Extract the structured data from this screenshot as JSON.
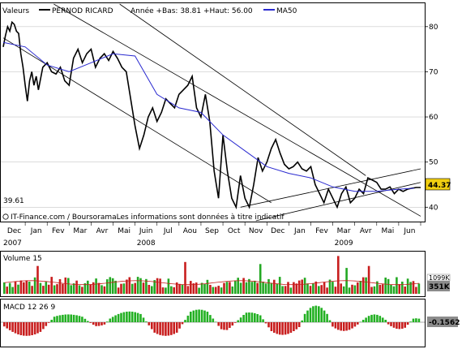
{
  "colors": {
    "price": "#000000",
    "ma50": "#2a2ad0",
    "channel": "#000000",
    "grid": "#c8c8c8",
    "volume_up": "#23a823",
    "volume_down": "#c81e1e",
    "volume_ma": "#c81e1e",
    "macd_up": "#22b022",
    "macd_down": "#c81e1e",
    "price_box": "#f2cf10",
    "box_grey": "#8c8c8c"
  },
  "chart_data": [
    {
      "type": "line",
      "legend": {
        "valeurs": "Valeurs",
        "name": "PERNOD RICARD",
        "stats": "Année +Bas: 38.81 +Haut: 56.00",
        "ma_label": "MA50"
      },
      "watermark": "IT-Finance.com / BoursoramaLes informations sont données à titre indicatif",
      "min_label": "39.61",
      "last_price_label": "44.37",
      "ylim": [
        37,
        85
      ],
      "yticks": [
        "40",
        "50",
        "60",
        "70",
        "80"
      ],
      "xlim": [
        0,
        19
      ],
      "months": [
        "Dec",
        "Jan",
        "Fev",
        "Mar",
        "Avr",
        "Mai",
        "Juin",
        "Jul",
        "Aou",
        "Sep",
        "Oct",
        "Nov",
        "Dec",
        "Jan",
        "Fev",
        "Mar",
        "Avr",
        "Mai",
        "Jun"
      ],
      "years": [
        {
          "label": "2007",
          "x": 0
        },
        {
          "label": "2008",
          "x": 6.5
        },
        {
          "label": "2009",
          "x": 15.5
        }
      ],
      "series": [
        {
          "name": "PERNOD RICARD",
          "x": [
            0.0,
            0.1,
            0.2,
            0.3,
            0.4,
            0.5,
            0.6,
            0.7,
            0.8,
            0.9,
            1.0,
            1.1,
            1.2,
            1.3,
            1.4,
            1.5,
            1.6,
            1.8,
            2.0,
            2.2,
            2.4,
            2.6,
            2.8,
            3.0,
            3.2,
            3.4,
            3.6,
            3.8,
            4.0,
            4.2,
            4.4,
            4.6,
            4.8,
            5.0,
            5.2,
            5.4,
            5.6,
            5.8,
            6.0,
            6.2,
            6.4,
            6.6,
            6.8,
            7.0,
            7.2,
            7.4,
            7.6,
            7.8,
            8.0,
            8.2,
            8.4,
            8.6,
            8.8,
            9.0,
            9.2,
            9.4,
            9.6,
            9.8,
            10.0,
            10.2,
            10.4,
            10.6,
            10.8,
            11.0,
            11.2,
            11.4,
            11.6,
            11.8,
            12.0,
            12.2,
            12.4,
            12.6,
            12.8,
            13.0,
            13.2,
            13.4,
            13.6,
            13.8,
            14.0,
            14.2,
            14.4,
            14.6,
            14.8,
            15.0,
            15.2,
            15.4,
            15.6,
            15.8,
            16.0,
            16.2,
            16.4,
            16.6,
            16.8,
            17.0,
            17.2,
            17.4,
            17.6,
            17.8,
            18.0,
            18.2,
            18.4,
            18.6,
            18.8,
            19.0
          ],
          "values": [
            75.5,
            78,
            80,
            79,
            81,
            80.5,
            79,
            78.5,
            74,
            71,
            67,
            63.5,
            68,
            70,
            67,
            69,
            66,
            71,
            72,
            70,
            69.5,
            71,
            68,
            67,
            73,
            75,
            72,
            74,
            75,
            71,
            73,
            74,
            72.5,
            74.5,
            73,
            71,
            70,
            64,
            58,
            53,
            56,
            60,
            62,
            59,
            61,
            64,
            63,
            62,
            65,
            66,
            67,
            69,
            62,
            60,
            65,
            59,
            48,
            42,
            56,
            48,
            42,
            40,
            47,
            42,
            40,
            45,
            51,
            48,
            50,
            53,
            55,
            52,
            49.5,
            48.5,
            49,
            50,
            48.5,
            48,
            49,
            45,
            43,
            41,
            44,
            42,
            40,
            43,
            44.5,
            41,
            42,
            44,
            43,
            46.5,
            46,
            45.5,
            44,
            44,
            44.5,
            43,
            44,
            43.5,
            44,
            44.2,
            44.37,
            44.37
          ]
        },
        {
          "name": "MA50",
          "x": [
            0,
            1,
            2,
            3,
            4,
            5,
            6,
            7,
            8,
            9,
            10,
            11,
            12,
            13,
            14,
            15,
            16,
            17,
            18,
            18.7
          ],
          "values": [
            76.5,
            75.5,
            71.5,
            70,
            72,
            74,
            73.5,
            65,
            62,
            61,
            56,
            52.5,
            49,
            47.5,
            46.5,
            44.5,
            43.5,
            43.5,
            44,
            44.2
          ]
        }
      ],
      "channels": [
        {
          "x": [
            0,
            12.2
          ],
          "values": [
            77.5,
            41
          ]
        },
        {
          "x": [
            2.3,
            19
          ],
          "values": [
            85,
            38
          ]
        },
        {
          "x": [
            5.3,
            16.5
          ],
          "values": [
            85,
            47
          ]
        },
        {
          "x": [
            10.8,
            19
          ],
          "values": [
            40,
            48.5
          ]
        },
        {
          "x": [
            11.5,
            19
          ],
          "values": [
            37,
            45.5
          ]
        }
      ]
    },
    {
      "type": "bar",
      "name": "Volume",
      "label": "Volume 15",
      "last_label": "351K",
      "partial_label": "1099K",
      "ylim": [
        0,
        1.0
      ],
      "count": 150,
      "highlights": {
        "12": 0.7,
        "65": 0.8,
        "92": 0.75,
        "120": 0.95,
        "123": 0.65,
        "131": 0.7
      }
    },
    {
      "type": "bar",
      "name": "MACD",
      "label": "MACD 12 26 9",
      "last_label": "-0.1562",
      "ylim": [
        -1,
        1
      ],
      "waves": [
        {
          "c": 8,
          "w": 10,
          "a": -0.7
        },
        {
          "c": 23,
          "w": 10,
          "a": 0.4
        },
        {
          "c": 33,
          "w": 5,
          "a": -0.2
        },
        {
          "c": 45,
          "w": 9,
          "a": 0.55
        },
        {
          "c": 58,
          "w": 9,
          "a": -0.7
        },
        {
          "c": 70,
          "w": 8,
          "a": 0.65
        },
        {
          "c": 80,
          "w": 7,
          "a": -0.4
        },
        {
          "c": 88,
          "w": 8,
          "a": 0.5
        },
        {
          "c": 100,
          "w": 8,
          "a": -0.65
        },
        {
          "c": 112,
          "w": 6,
          "a": 0.85
        },
        {
          "c": 122,
          "w": 6,
          "a": -0.45
        },
        {
          "c": 133,
          "w": 5,
          "a": 0.4
        },
        {
          "c": 142,
          "w": 5,
          "a": -0.35
        },
        {
          "c": 148,
          "w": 4,
          "a": 0.2
        }
      ]
    }
  ]
}
